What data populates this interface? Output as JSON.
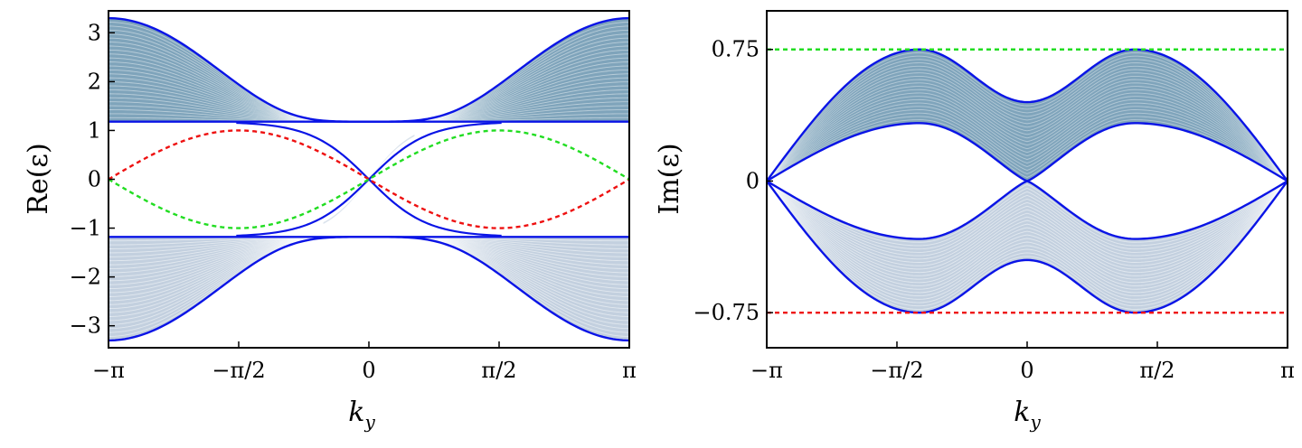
{
  "chart_data": [
    {
      "type": "line",
      "panel": "left",
      "ylabel": "Re(ε)",
      "xlabel": "k",
      "xlabel_sub": "y",
      "xlim": [
        -3.14159,
        3.14159
      ],
      "ylim": [
        -3.45,
        3.45
      ],
      "xticks": [
        {
          "value": -3.14159,
          "label": "−π"
        },
        {
          "value": -1.5708,
          "label": "−π/2"
        },
        {
          "value": 0,
          "label": "0"
        },
        {
          "value": 1.5708,
          "label": "π/2"
        },
        {
          "value": 3.14159,
          "label": "π"
        }
      ],
      "yticks": [
        {
          "value": 3,
          "label": "3"
        },
        {
          "value": 2,
          "label": "2"
        },
        {
          "value": 1,
          "label": "1"
        },
        {
          "value": 0,
          "label": "0"
        },
        {
          "value": -1,
          "label": "−1"
        },
        {
          "value": -2,
          "label": "−2"
        },
        {
          "value": -3,
          "label": "−3"
        }
      ],
      "bands": [
        {
          "edge_at_pi": 3.3,
          "edge_at_zero": 1.18,
          "flat_edge": 1.18
        },
        {
          "edge_at_pi": -3.3,
          "edge_at_zero": -1.18,
          "flat_edge": -1.18
        }
      ],
      "edge_state_amplitude": 1.0,
      "dashed_curves": [
        {
          "color": "#ee1111",
          "amplitude": 1.0,
          "x": [
            -3.14159,
            -1.5708,
            0,
            1.5708,
            3.14159
          ],
          "y": [
            0,
            1,
            0,
            -1,
            0
          ]
        },
        {
          "color": "#22dd22",
          "amplitude": -1.0,
          "x": [
            -3.14159,
            -1.5708,
            0,
            1.5708,
            3.14159
          ],
          "y": [
            0,
            -1,
            0,
            1,
            0
          ]
        }
      ],
      "colors": {
        "fill": "#7fa4bb",
        "fill_light": "#c3d0df",
        "edge": "#0a14e6"
      }
    },
    {
      "type": "line",
      "panel": "right",
      "ylabel": "Im(ε)",
      "xlabel": "k",
      "xlabel_sub": "y",
      "xlim": [
        -3.14159,
        3.14159
      ],
      "ylim": [
        -0.95,
        0.97
      ],
      "xticks": [
        {
          "value": -3.14159,
          "label": "−π"
        },
        {
          "value": -1.5708,
          "label": "−π/2"
        },
        {
          "value": 0,
          "label": "0"
        },
        {
          "value": 1.5708,
          "label": "π/2"
        },
        {
          "value": 3.14159,
          "label": "π"
        }
      ],
      "yticks": [
        {
          "value": 0.75,
          "label": "0.75"
        },
        {
          "value": 0,
          "label": "0"
        },
        {
          "value": -0.75,
          "label": "−0.75"
        }
      ],
      "outer_edge": {
        "x": [
          -3.14159,
          -1.3,
          -0.25,
          0,
          0.25,
          1.3,
          3.14159
        ],
        "y": [
          0,
          0.75,
          0.5,
          0.45,
          0.5,
          0.75,
          0
        ]
      },
      "inner_edge": {
        "x": [
          -3.14159,
          -1.3,
          0,
          1.3,
          3.14159
        ],
        "y": [
          0,
          0.33,
          0,
          0.33,
          0
        ]
      },
      "dashed_levels": [
        {
          "value": 0.75,
          "color": "#22dd22"
        },
        {
          "value": -0.75,
          "color": "#ee1111"
        }
      ],
      "colors": {
        "fill": "#7fa4bb",
        "fill_light": "#c3d0df",
        "edge": "#0a14e6"
      }
    }
  ]
}
